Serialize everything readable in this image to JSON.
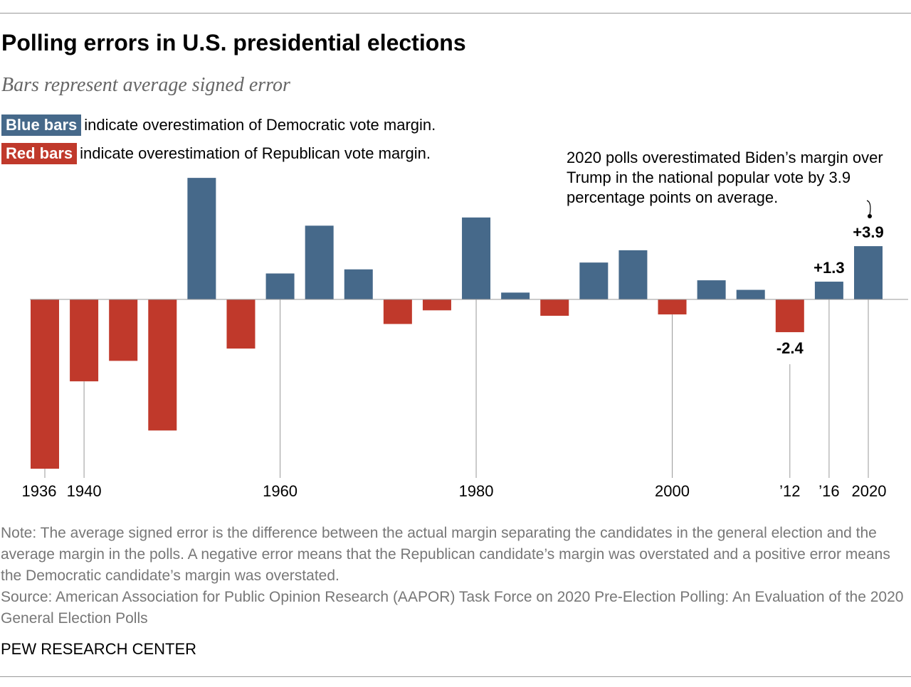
{
  "chart_data": {
    "type": "bar",
    "title": "Polling errors in U.S. presidential elections",
    "subtitle": "Bars represent average signed error",
    "legend": [
      {
        "label": "Blue bars",
        "text": "indicate overestimation of Democratic vote margin.",
        "color": "#46698a"
      },
      {
        "label": "Red bars",
        "text": "indicate overestimation of Republican vote margin.",
        "color": "#c0392b"
      }
    ],
    "categories": [
      1936,
      1940,
      1944,
      1948,
      1952,
      1956,
      1960,
      1964,
      1968,
      1972,
      1976,
      1980,
      1984,
      1988,
      1992,
      1996,
      2000,
      2004,
      2008,
      2012,
      2016,
      2020
    ],
    "values": [
      -12.4,
      -6.0,
      -4.5,
      -9.6,
      8.9,
      -3.6,
      1.9,
      5.4,
      2.2,
      -1.8,
      -0.8,
      6.0,
      0.5,
      -1.2,
      2.7,
      3.6,
      -1.1,
      1.4,
      0.7,
      -2.4,
      1.3,
      3.9
    ],
    "tick_labels": [
      {
        "year": 1936,
        "label": "1936"
      },
      {
        "year": 1940,
        "label": "1940"
      },
      {
        "year": 1960,
        "label": "1960"
      },
      {
        "year": 1980,
        "label": "1980"
      },
      {
        "year": 2000,
        "label": "2000"
      },
      {
        "year": 2012,
        "label": "’12"
      },
      {
        "year": 2016,
        "label": "’16"
      },
      {
        "year": 2020,
        "label": "2020"
      }
    ],
    "data_labels": [
      {
        "year": 2012,
        "label": "-2.4"
      },
      {
        "year": 2016,
        "label": "+1.3"
      },
      {
        "year": 2020,
        "label": "+3.9"
      }
    ],
    "annotation": "2020 polls overestimated Biden’s margin over Trump in the national popular vote by 3.9 percentage points on average.",
    "ylim": [
      -13,
      9.5
    ],
    "grid": false
  },
  "note": "Note: The average signed error is the difference between the actual margin separating the candidates in the general election and the average margin in the polls. A negative error means that the Republican candidate’s margin was overstated and a positive error means the Democratic candidate’s margin was overstated.",
  "source": "Source: American Association for Public Opinion Research (AAPOR) Task Force on 2020 Pre-Election Polling: An Evaluation of the 2020 General Election Polls",
  "credit": "PEW RESEARCH CENTER"
}
